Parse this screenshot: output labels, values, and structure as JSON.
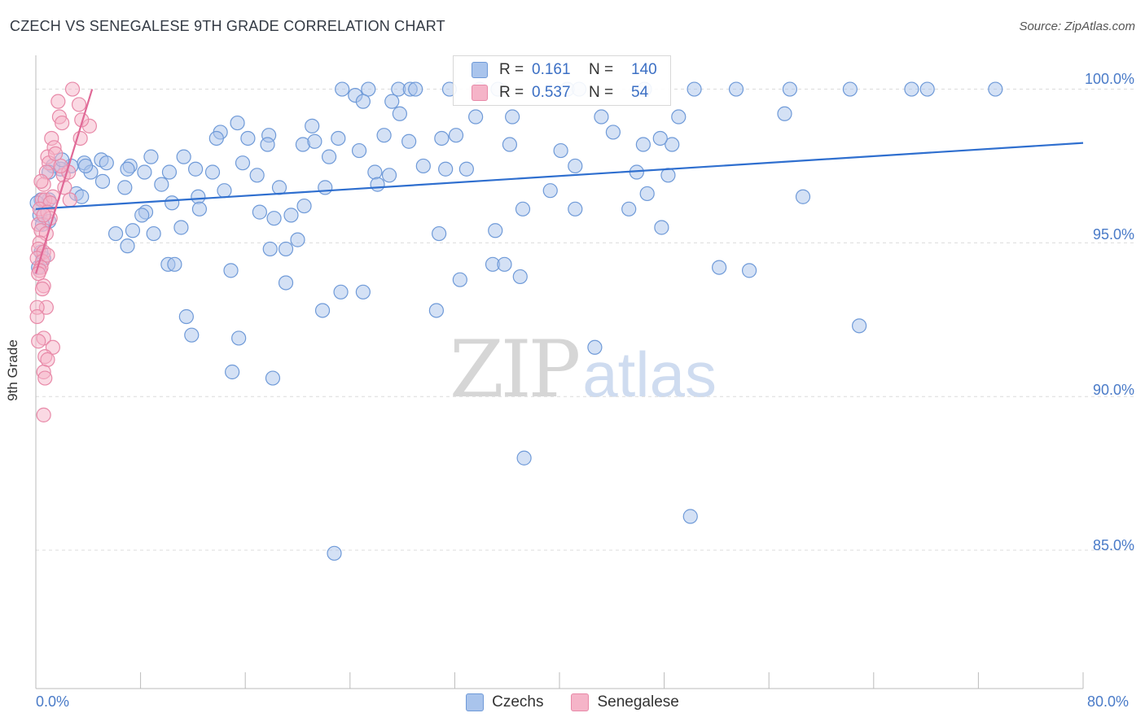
{
  "title": "CZECH VS SENEGALESE 9TH GRADE CORRELATION CHART",
  "source": "Source: ZipAtlas.com",
  "watermark": {
    "part1": "ZIP",
    "part2": "atlas"
  },
  "chart_data": {
    "type": "scatter",
    "ylabel": "9th Grade",
    "xlim": [
      0,
      80
    ],
    "ylim": [
      80.5,
      101.1
    ],
    "x_tick_labels": [
      "0.0%",
      "80.0%"
    ],
    "y_ticks": [
      {
        "value": 100,
        "label": "100.0%"
      },
      {
        "value": 95,
        "label": "95.0%"
      },
      {
        "value": 90,
        "label": "90.0%"
      },
      {
        "value": 85,
        "label": "85.0%"
      }
    ],
    "grid": "horizontal dashed",
    "legend_position": "bottom",
    "stats": [
      {
        "r_label": "R =",
        "r": "0.161",
        "n_label": "N =",
        "n": "140",
        "color": "#a9c4ec"
      },
      {
        "r_label": "R =",
        "r": "0.537",
        "n_label": "N =",
        "n": "54",
        "color": "#f5b4c8"
      }
    ],
    "series": [
      {
        "name": "Czechs",
        "fill": "#a9c4ec",
        "stroke": "#6f9ad8",
        "line_color": "#2f6fcf",
        "trend": {
          "x0": 0,
          "y0": 96.1,
          "x1": 80,
          "y1": 98.25
        },
        "points": [
          [
            23.4,
            100
          ],
          [
            25.4,
            100
          ],
          [
            27.7,
            100
          ],
          [
            28.6,
            100
          ],
          [
            29.0,
            100
          ],
          [
            31.6,
            100
          ],
          [
            33.9,
            100
          ],
          [
            35.3,
            100
          ],
          [
            40.6,
            100
          ],
          [
            41.5,
            100
          ],
          [
            46.5,
            100
          ],
          [
            50.3,
            100
          ],
          [
            53.5,
            100
          ],
          [
            57.6,
            100
          ],
          [
            62.2,
            100
          ],
          [
            66.9,
            100
          ],
          [
            68.1,
            100
          ],
          [
            73.3,
            100
          ],
          [
            24.4,
            99.8
          ],
          [
            25.0,
            99.6
          ],
          [
            27.2,
            99.6
          ],
          [
            27.8,
            99.2
          ],
          [
            33.6,
            99.1
          ],
          [
            36.4,
            99.1
          ],
          [
            43.2,
            99.1
          ],
          [
            49.1,
            99.1
          ],
          [
            57.2,
            99.2
          ],
          [
            15.4,
            98.9
          ],
          [
            21.1,
            98.8
          ],
          [
            14.1,
            98.6
          ],
          [
            17.8,
            98.5
          ],
          [
            13.8,
            98.4
          ],
          [
            16.2,
            98.4
          ],
          [
            23.1,
            98.4
          ],
          [
            26.6,
            98.5
          ],
          [
            28.5,
            98.3
          ],
          [
            31.0,
            98.4
          ],
          [
            32.1,
            98.5
          ],
          [
            48.6,
            98.2
          ],
          [
            47.7,
            98.4
          ],
          [
            17.7,
            98.2
          ],
          [
            20.4,
            98.2
          ],
          [
            21.3,
            98.3
          ],
          [
            36.2,
            98.2
          ],
          [
            46.4,
            98.2
          ],
          [
            24.7,
            98.0
          ],
          [
            40.1,
            98.0
          ],
          [
            22.4,
            97.8
          ],
          [
            8.8,
            97.8
          ],
          [
            5.0,
            97.7
          ],
          [
            5.4,
            97.6
          ],
          [
            15.8,
            97.6
          ],
          [
            29.6,
            97.5
          ],
          [
            31.3,
            97.4
          ],
          [
            32.9,
            97.4
          ],
          [
            41.2,
            97.5
          ],
          [
            2.7,
            97.5
          ],
          [
            3.7,
            97.6
          ],
          [
            7.2,
            97.5
          ],
          [
            7.0,
            97.4
          ],
          [
            1.3,
            97.5
          ],
          [
            1.9,
            97.4
          ],
          [
            1.0,
            97.3
          ],
          [
            8.3,
            97.3
          ],
          [
            10.2,
            97.3
          ],
          [
            12.2,
            97.4
          ],
          [
            13.5,
            97.3
          ],
          [
            16.9,
            97.2
          ],
          [
            25.9,
            97.3
          ],
          [
            27.0,
            97.2
          ],
          [
            45.9,
            97.3
          ],
          [
            48.3,
            97.2
          ],
          [
            5.1,
            97.0
          ],
          [
            9.6,
            96.9
          ],
          [
            18.6,
            96.8
          ],
          [
            22.1,
            96.8
          ],
          [
            39.3,
            96.7
          ],
          [
            3.1,
            96.6
          ],
          [
            3.5,
            96.5
          ],
          [
            1.0,
            96.4
          ],
          [
            12.4,
            96.5
          ],
          [
            14.4,
            96.7
          ],
          [
            46.7,
            96.6
          ],
          [
            58.6,
            96.5
          ],
          [
            10.4,
            96.3
          ],
          [
            20.5,
            96.2
          ],
          [
            37.2,
            96.1
          ],
          [
            41.2,
            96.1
          ],
          [
            45.3,
            96.1
          ],
          [
            12.5,
            96.1
          ],
          [
            0.4,
            96.4
          ],
          [
            8.4,
            96.0
          ],
          [
            8.1,
            95.9
          ],
          [
            17.1,
            96.0
          ],
          [
            19.5,
            95.9
          ],
          [
            18.2,
            95.8
          ],
          [
            11.1,
            95.5
          ],
          [
            6.1,
            95.3
          ],
          [
            7.4,
            95.4
          ],
          [
            9.0,
            95.3
          ],
          [
            30.8,
            95.3
          ],
          [
            35.1,
            95.4
          ],
          [
            47.8,
            95.5
          ],
          [
            20.0,
            95.1
          ],
          [
            7.0,
            94.9
          ],
          [
            17.9,
            94.8
          ],
          [
            19.1,
            94.8
          ],
          [
            10.1,
            94.3
          ],
          [
            10.6,
            94.3
          ],
          [
            34.9,
            94.3
          ],
          [
            35.8,
            94.3
          ],
          [
            14.9,
            94.1
          ],
          [
            52.2,
            94.2
          ],
          [
            54.5,
            94.1
          ],
          [
            0.2,
            94.2
          ],
          [
            19.1,
            93.7
          ],
          [
            32.4,
            93.8
          ],
          [
            37.0,
            93.9
          ],
          [
            23.3,
            93.4
          ],
          [
            25.0,
            93.4
          ],
          [
            21.9,
            92.8
          ],
          [
            30.6,
            92.8
          ],
          [
            11.5,
            92.6
          ],
          [
            62.9,
            92.3
          ],
          [
            11.9,
            92.0
          ],
          [
            15.5,
            91.9
          ],
          [
            42.7,
            91.6
          ],
          [
            15.0,
            90.8
          ],
          [
            18.1,
            90.6
          ],
          [
            37.3,
            88.0
          ],
          [
            50.0,
            86.1
          ],
          [
            22.8,
            84.9
          ],
          [
            0.1,
            96.3
          ],
          [
            0.3,
            95.9
          ],
          [
            1.0,
            95.7
          ],
          [
            0.5,
            95.6
          ],
          [
            2.0,
            97.7
          ],
          [
            4.2,
            97.3
          ],
          [
            3.8,
            97.5
          ],
          [
            6.8,
            96.8
          ],
          [
            11.3,
            97.8
          ],
          [
            26.1,
            96.9
          ],
          [
            44.1,
            98.6
          ],
          [
            0.6,
            94.5
          ],
          [
            0.4,
            94.7
          ]
        ]
      },
      {
        "name": "Senegalese",
        "fill": "#f5b4c8",
        "stroke": "#e889a8",
        "line_color": "#e06896",
        "trend": {
          "x0": 0,
          "y0": 94.0,
          "x1": 4.3,
          "y1": 100.0
        },
        "points": [
          [
            2.8,
            100
          ],
          [
            3.3,
            99.5
          ],
          [
            1.7,
            99.6
          ],
          [
            1.8,
            99.1
          ],
          [
            2.0,
            98.9
          ],
          [
            4.1,
            98.8
          ],
          [
            3.5,
            99.0
          ],
          [
            1.2,
            98.4
          ],
          [
            3.4,
            98.4
          ],
          [
            1.4,
            98.1
          ],
          [
            0.9,
            97.8
          ],
          [
            1.0,
            97.6
          ],
          [
            0.8,
            97.3
          ],
          [
            2.1,
            97.2
          ],
          [
            2.5,
            97.3
          ],
          [
            1.9,
            97.5
          ],
          [
            0.6,
            96.9
          ],
          [
            2.2,
            96.8
          ],
          [
            0.5,
            96.4
          ],
          [
            0.7,
            96.4
          ],
          [
            1.3,
            96.5
          ],
          [
            1.1,
            96.3
          ],
          [
            0.3,
            96.1
          ],
          [
            2.6,
            96.4
          ],
          [
            0.9,
            96.0
          ],
          [
            1.1,
            95.8
          ],
          [
            0.2,
            95.6
          ],
          [
            0.4,
            95.4
          ],
          [
            0.8,
            95.3
          ],
          [
            0.3,
            95.0
          ],
          [
            0.2,
            94.8
          ],
          [
            0.6,
            94.7
          ],
          [
            0.1,
            94.5
          ],
          [
            0.5,
            94.4
          ],
          [
            0.4,
            94.2
          ],
          [
            0.3,
            94.1
          ],
          [
            0.2,
            94.0
          ],
          [
            0.6,
            93.6
          ],
          [
            0.8,
            92.9
          ],
          [
            0.1,
            92.9
          ],
          [
            0.1,
            92.6
          ],
          [
            0.6,
            91.9
          ],
          [
            0.2,
            91.8
          ],
          [
            1.3,
            91.6
          ],
          [
            0.7,
            91.3
          ],
          [
            0.9,
            91.2
          ],
          [
            0.6,
            90.8
          ],
          [
            0.7,
            90.6
          ],
          [
            0.6,
            89.4
          ],
          [
            0.4,
            97.0
          ],
          [
            1.5,
            97.9
          ],
          [
            0.6,
            95.9
          ],
          [
            0.9,
            94.6
          ],
          [
            0.5,
            93.5
          ]
        ]
      }
    ]
  }
}
